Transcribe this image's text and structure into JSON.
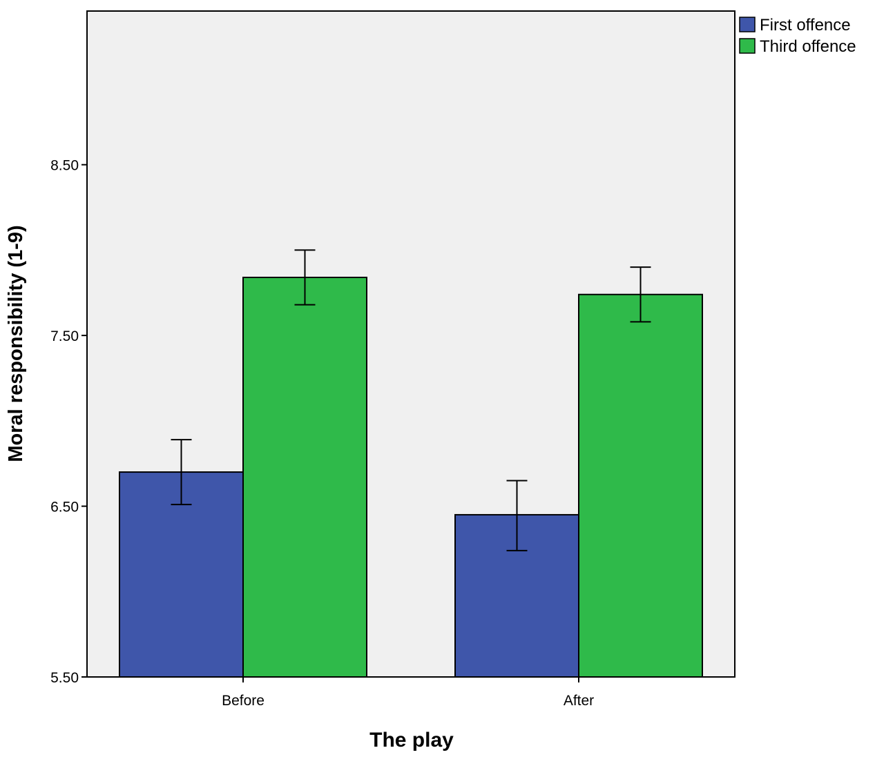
{
  "chart_data": {
    "type": "bar",
    "xlabel": "The play",
    "ylabel": "Moral responsibility (1-9)",
    "categories": [
      "Before",
      "After"
    ],
    "ylim": [
      5.5,
      9.4
    ],
    "yticks": [
      5.5,
      6.5,
      7.5,
      8.5
    ],
    "ytick_labels": [
      "5.50",
      "6.50",
      "7.50",
      "8.50"
    ],
    "grid": false,
    "legend_position": "top-right, outside plot",
    "plot_background": "#f0f0f0",
    "series": [
      {
        "name": "First offence",
        "color": "#3f56aa",
        "values": [
          6.7,
          6.45
        ],
        "error_low": [
          6.51,
          6.24
        ],
        "error_high": [
          6.89,
          6.65
        ]
      },
      {
        "name": "Third offence",
        "color": "#2fba4a",
        "values": [
          7.84,
          7.74
        ],
        "error_low": [
          7.68,
          7.58
        ],
        "error_high": [
          8.0,
          7.9
        ]
      }
    ]
  }
}
